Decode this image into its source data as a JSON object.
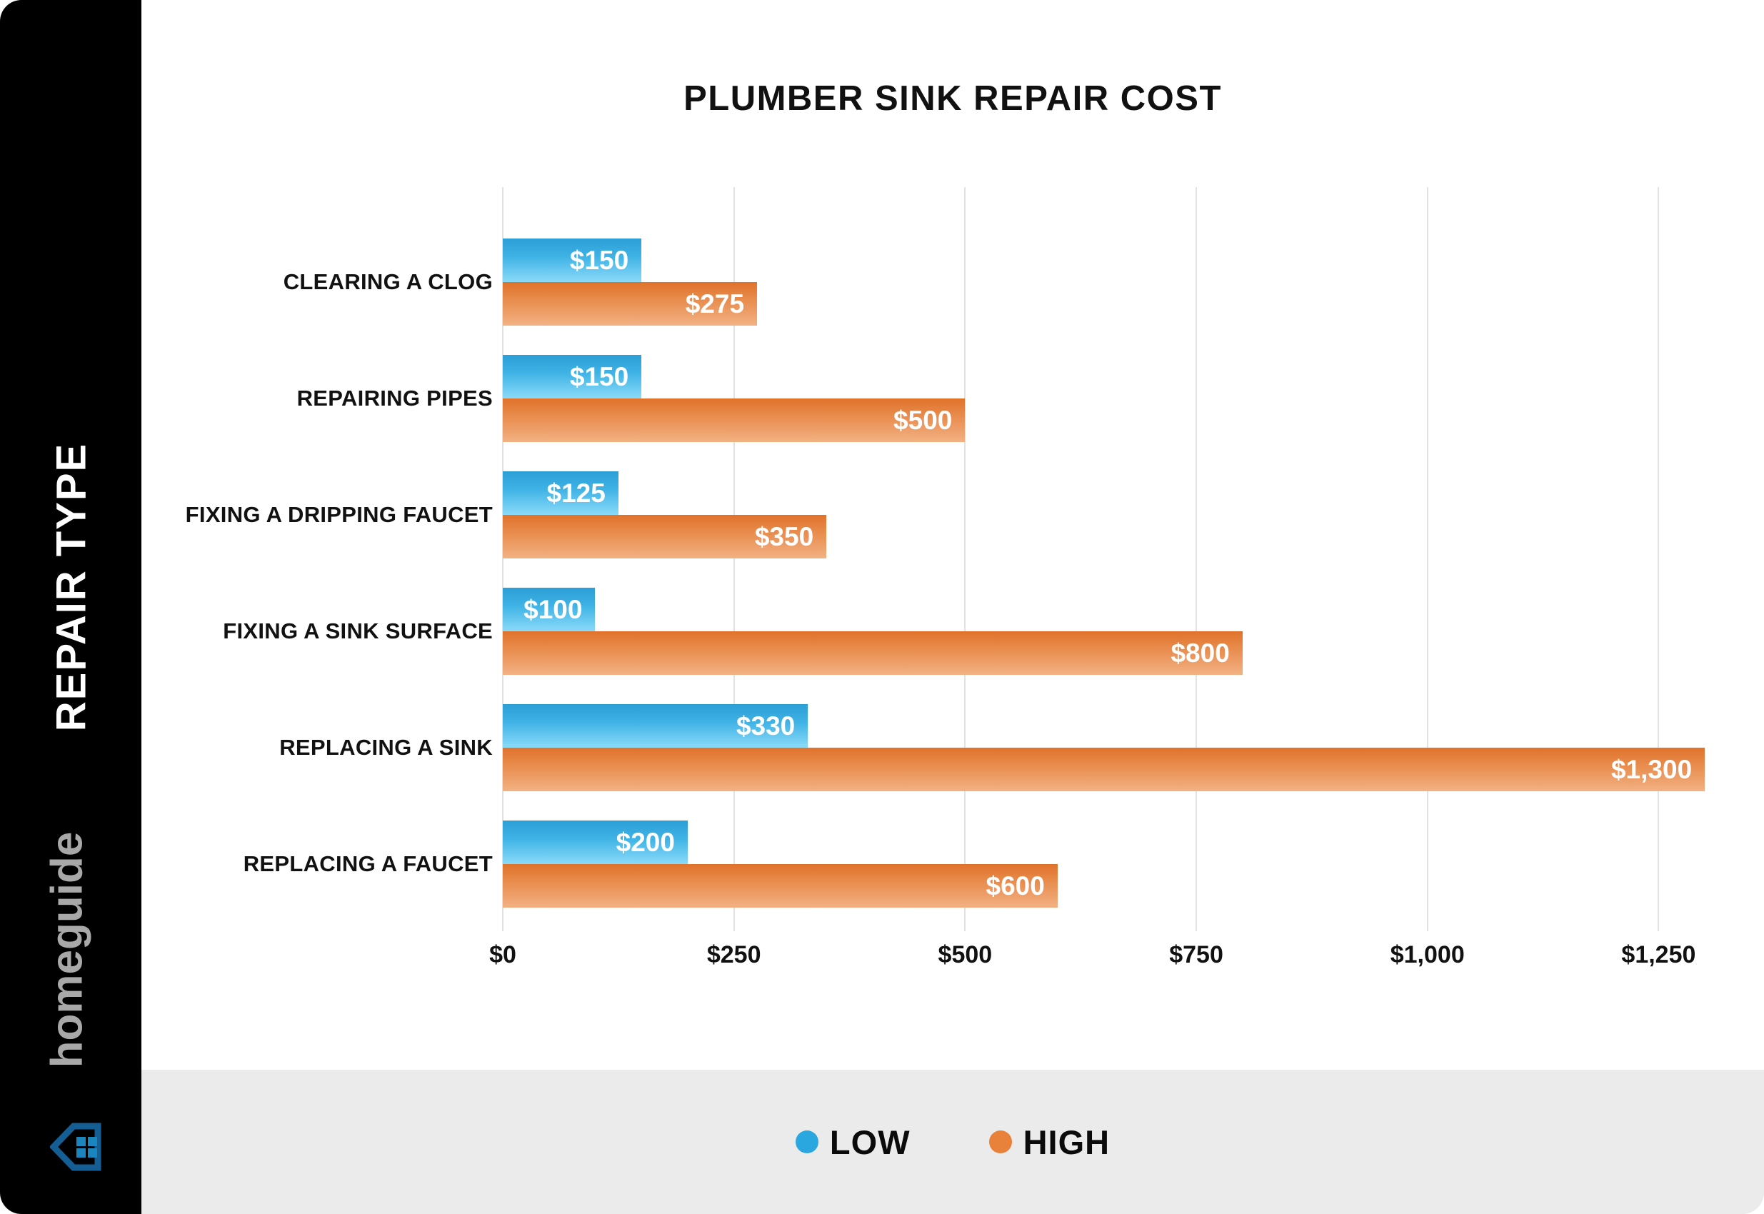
{
  "title": "PLUMBER SINK REPAIR COST",
  "sidebar": {
    "axis_label": "REPAIR TYPE",
    "brand_name": "homeguide",
    "brand_colors": {
      "text": "#A8A8A8",
      "icon_outline": "#145E94",
      "icon_panes": "#1B86BE"
    }
  },
  "legend": {
    "items": [
      {
        "label": "LOW",
        "color": "#2AA7DF"
      },
      {
        "label": "HIGH",
        "color": "#E8823B"
      }
    ]
  },
  "chart_data": {
    "type": "bar",
    "orientation": "horizontal",
    "title": "PLUMBER SINK REPAIR COST",
    "ylabel": "REPAIR TYPE",
    "xlim": [
      0,
      1330
    ],
    "grid": true,
    "legend_position": "bottom",
    "colors": {
      "low_bar_top": "#2B9FD6",
      "low_bar_bottom": "#8BDAF8",
      "high_bar_top": "#E0722B",
      "high_bar_bottom": "#F2B183"
    },
    "categories": [
      "CLEARING A CLOG",
      "REPAIRING PIPES",
      "FIXING A DRIPPING FAUCET",
      "FIXING A SINK SURFACE",
      "REPLACING A SINK",
      "REPLACING A FAUCET"
    ],
    "series": [
      {
        "name": "LOW",
        "color": "#2AA7DF",
        "values": [
          150,
          150,
          125,
          100,
          330,
          200
        ]
      },
      {
        "name": "HIGH",
        "color": "#E8823B",
        "values": [
          275,
          500,
          350,
          800,
          1300,
          600
        ]
      }
    ],
    "rows": [
      {
        "category": "CLEARING A CLOG",
        "low": 150,
        "high": 275,
        "low_label": "$150",
        "high_label": "$275"
      },
      {
        "category": "REPAIRING PIPES",
        "low": 150,
        "high": 500,
        "low_label": "$150",
        "high_label": "$500"
      },
      {
        "category": "FIXING A DRIPPING FAUCET",
        "low": 125,
        "high": 350,
        "low_label": "$125",
        "high_label": "$350"
      },
      {
        "category": "FIXING A SINK SURFACE",
        "low": 100,
        "high": 800,
        "low_label": "$100",
        "high_label": "$800"
      },
      {
        "category": "REPLACING A SINK",
        "low": 330,
        "high": 1300,
        "low_label": "$330",
        "high_label": "$1,300"
      },
      {
        "category": "REPLACING A FAUCET",
        "low": 200,
        "high": 600,
        "low_label": "$200",
        "high_label": "$600"
      }
    ],
    "ticks": [
      {
        "label": "$0",
        "value": 0
      },
      {
        "label": "$250",
        "value": 250
      },
      {
        "label": "$500",
        "value": 500
      },
      {
        "label": "$750",
        "value": 750
      },
      {
        "label": "$1,000",
        "value": 1000
      },
      {
        "label": "$1,250",
        "value": 1250
      }
    ]
  }
}
